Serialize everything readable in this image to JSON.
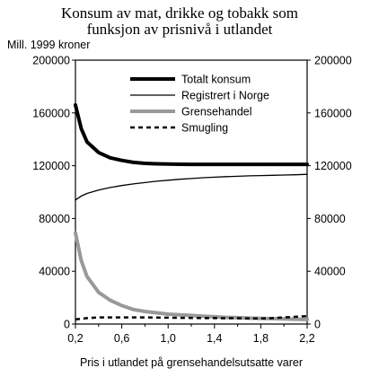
{
  "chart_data": {
    "type": "line",
    "title_line1": "Konsum av mat, drikke og tobakk som",
    "title_line2": "funksjon av prisnivå i utlandet",
    "ylabel": "Mill. 1999 kroner",
    "xlabel": "Pris i utlandet på grensehandelsutsatte varer",
    "xlim": [
      0.2,
      2.2
    ],
    "ylim": [
      0,
      200000
    ],
    "x_ticks": [
      "0,2",
      "0,6",
      "1,0",
      "1,4",
      "1,8",
      "2,2"
    ],
    "y_ticks_left": [
      "0",
      "40000",
      "80000",
      "120000",
      "160000",
      "200000"
    ],
    "y_ticks_right": [
      "0",
      "40000",
      "80000",
      "120000",
      "160000",
      "200000"
    ],
    "grid": false,
    "legend_position": "top-right (inside plot)",
    "x": [
      0.2,
      0.25,
      0.3,
      0.4,
      0.5,
      0.6,
      0.7,
      0.8,
      0.9,
      1.0,
      1.1,
      1.2,
      1.3,
      1.4,
      1.5,
      1.6,
      1.7,
      1.8,
      1.9,
      2.0,
      2.1,
      2.2
    ],
    "series": [
      {
        "name": "Totalt konsum",
        "color": "#000000",
        "style": "thick-solid",
        "values": [
          166000,
          148000,
          138000,
          130000,
          126000,
          124000,
          122500,
          121800,
          121400,
          121200,
          121100,
          121000,
          121000,
          121000,
          121000,
          121000,
          121000,
          121000,
          121000,
          121000,
          121000,
          121000
        ]
      },
      {
        "name": "Registrert i Norge",
        "color": "#000000",
        "style": "thin-solid",
        "values": [
          94000,
          97000,
          99000,
          101500,
          103500,
          105000,
          106200,
          107200,
          108200,
          109000,
          109700,
          110300,
          110900,
          111300,
          111700,
          112000,
          112300,
          112500,
          112700,
          112900,
          113100,
          113500
        ]
      },
      {
        "name": "Grensehandel",
        "color": "#999999",
        "style": "thick-solid",
        "values": [
          69000,
          48000,
          36000,
          24000,
          18000,
          14000,
          11000,
          9500,
          8500,
          7500,
          7000,
          6500,
          6000,
          5500,
          5000,
          4800,
          4500,
          4300,
          4100,
          3900,
          3700,
          3500
        ]
      },
      {
        "name": "Smugling",
        "color": "#000000",
        "style": "dashed",
        "values": [
          3500,
          4000,
          4500,
          5000,
          5000,
          5000,
          5000,
          5000,
          4900,
          4800,
          4700,
          4600,
          4500,
          4500,
          4400,
          4400,
          4300,
          4300,
          4500,
          5000,
          5500,
          6000
        ]
      }
    ]
  }
}
